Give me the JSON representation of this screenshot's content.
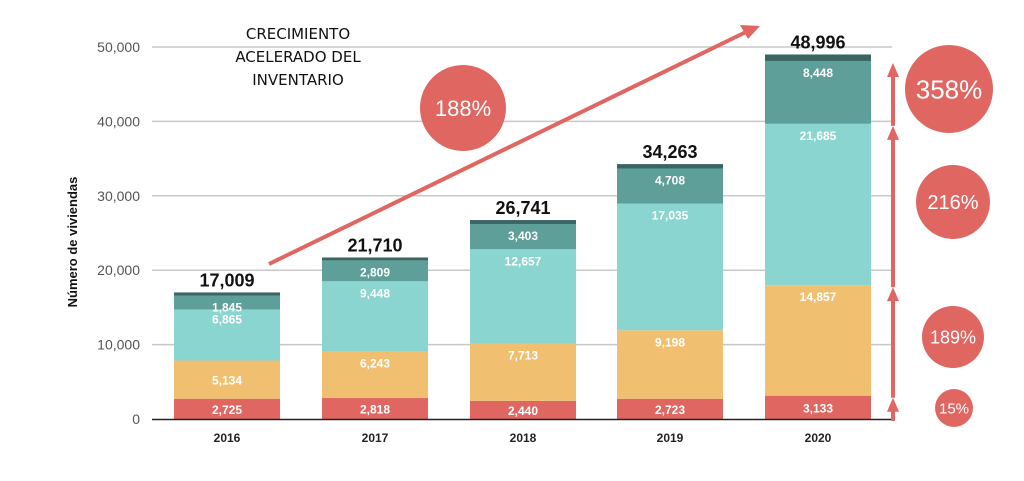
{
  "chart_data": {
    "type": "bar",
    "stacked": true,
    "title": "CRECIMIENTO ACELERADO DEL INVENTARIO",
    "title_lines": [
      "CRECIMIENTO",
      "ACELERADO DEL",
      "INVENTARIO"
    ],
    "xlabel": "",
    "ylabel": "Número de viviendas",
    "ylim": [
      0,
      50000
    ],
    "yticks": [
      0,
      10000,
      20000,
      30000,
      40000,
      50000
    ],
    "ytick_labels": [
      "0",
      "10,000",
      "20,000",
      "30,000",
      "40,000",
      "50,000"
    ],
    "grid": true,
    "categories": [
      "2016",
      "2017",
      "2018",
      "2019",
      "2020"
    ],
    "series": [
      {
        "name": "segment-1",
        "color": "#df6661",
        "values": [
          2725,
          2818,
          2440,
          2723,
          3133
        ],
        "labels": [
          "2,725",
          "2,818",
          "2,440",
          "2,723",
          "3,133"
        ]
      },
      {
        "name": "segment-2",
        "color": "#f0c070",
        "values": [
          5134,
          6243,
          7713,
          9198,
          14857
        ],
        "labels": [
          "5,134",
          "6,243",
          "7,713",
          "9,198",
          "14,857"
        ]
      },
      {
        "name": "segment-3",
        "color": "#8ad5cf",
        "values": [
          6865,
          9448,
          12657,
          17035,
          21685
        ],
        "labels": [
          "6,865",
          "9,448",
          "12,657",
          "17,035",
          "21,685"
        ]
      },
      {
        "name": "segment-4",
        "color": "#5e9f99",
        "values": [
          1845,
          2809,
          3403,
          4708,
          8448
        ],
        "labels": [
          "1,845",
          "2,809",
          "3,403",
          "4,708",
          "8,448"
        ]
      },
      {
        "name": "segment-5",
        "color": "#3a6661",
        "values": [
          440,
          392,
          528,
          599,
          873
        ],
        "labels": null
      }
    ],
    "totals": [
      17009,
      21710,
      26741,
      34263,
      48996
    ],
    "total_labels": [
      "17,009",
      "21,710",
      "26,741",
      "34,263",
      "48,996"
    ],
    "annotations": {
      "overall_growth": "188%",
      "segment_growth": [
        {
          "series": "segment-1",
          "label": "15%"
        },
        {
          "series": "segment-2",
          "label": "189%"
        },
        {
          "series": "segment-3",
          "label": "216%"
        },
        {
          "series": "segment-4",
          "label": "358%"
        }
      ]
    },
    "accent_color": "#df6661"
  }
}
